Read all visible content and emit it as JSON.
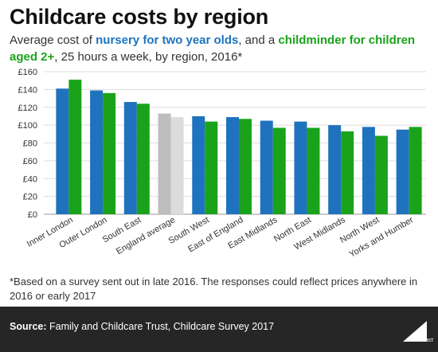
{
  "header": {
    "title": "Childcare costs by region",
    "subtitle_parts": [
      {
        "text": "Average cost of ",
        "style": "plain"
      },
      {
        "text": "nursery for two year olds",
        "style": "blue"
      },
      {
        "text": ", and a ",
        "style": "plain"
      },
      {
        "text": "childminder for children aged 2+",
        "style": "green"
      },
      {
        "text": ", 25 hours a week, by region, 2016*",
        "style": "plain"
      }
    ]
  },
  "footnote": "*Based on a survey sent out in late 2016. The responses could reflect prices anywhere in 2016 or early 2017",
  "footer": {
    "source_label": "Source:",
    "source_text": " Family and Childcare Trust, Childcare Survey 2017",
    "logo_text": "Full Fact"
  },
  "colors": {
    "nursery": "#1f73be",
    "childminder": "#1aa31a",
    "average_nursery": "#bdbdbd",
    "average_childminder": "#dcdcdc",
    "footer_bg": "#262626"
  },
  "chart_data": {
    "type": "bar",
    "categories": [
      "Inner London",
      "Outer London",
      "South East",
      "England average",
      "South West",
      "East of England",
      "East Midlands",
      "North East",
      "West Midlands",
      "North West",
      "Yorks and Humber"
    ],
    "series": [
      {
        "name": "nursery for two year olds",
        "values": [
          141,
          139,
          126,
          113,
          110,
          109,
          105,
          104,
          100,
          98,
          95
        ]
      },
      {
        "name": "childminder for children aged 2+",
        "values": [
          151,
          136,
          124,
          109,
          104,
          107,
          97,
          97,
          93,
          88,
          98
        ]
      }
    ],
    "highlight_category": "England average",
    "ylim": [
      0,
      160
    ],
    "yticks": [
      0,
      20,
      40,
      60,
      80,
      100,
      120,
      140,
      160
    ],
    "ytick_labels": [
      "£0",
      "£20",
      "£40",
      "£60",
      "£80",
      "£100",
      "£120",
      "£140",
      "£160"
    ],
    "grid": true
  }
}
